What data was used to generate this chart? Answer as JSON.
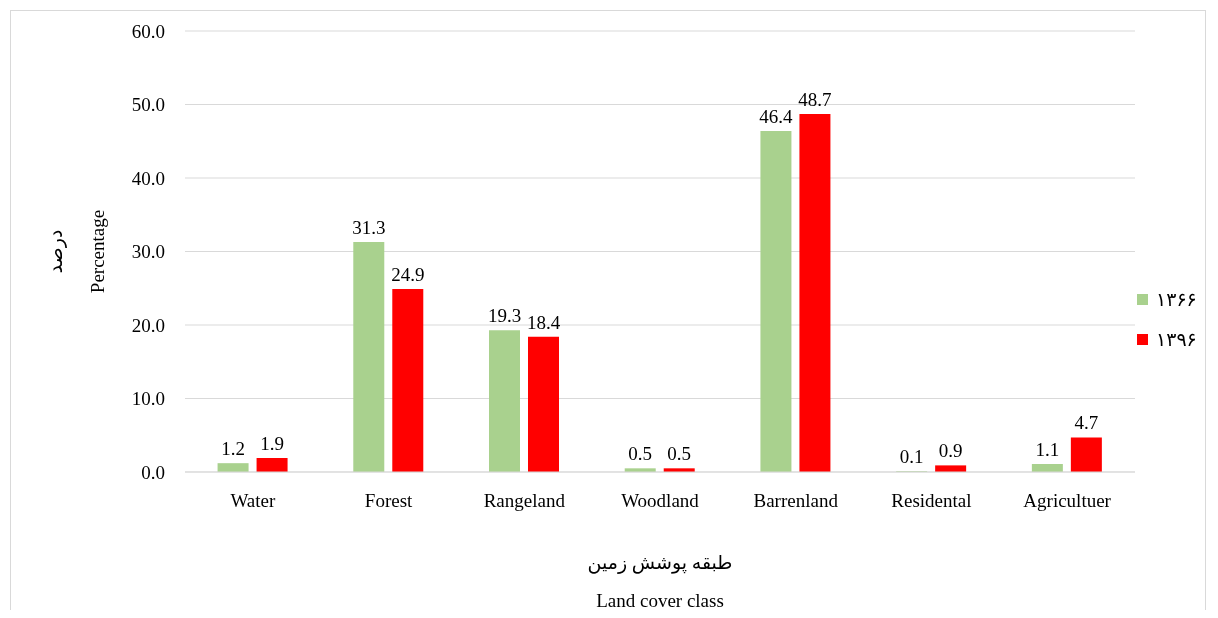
{
  "chart_data": {
    "type": "bar",
    "xlabel": "طبقه پوشش زمین\nLand cover class",
    "ylabel": "درصد\nPercentage",
    "categories": [
      "Water",
      "Forest",
      "Rangeland",
      "Woodland",
      "Barrenland",
      "Residental",
      "Agricultuer"
    ],
    "series": [
      {
        "name": "۱۳۶۶",
        "color": "#a9d18e",
        "values": [
          1.2,
          31.3,
          19.3,
          0.5,
          46.4,
          0.1,
          1.1
        ]
      },
      {
        "name": "۱۳۹۶",
        "color": "#ff0000",
        "values": [
          1.9,
          24.9,
          18.4,
          0.5,
          48.7,
          0.9,
          4.7
        ]
      }
    ],
    "ylim": [
      0,
      60
    ],
    "yticks": [
      {
        "value": 0,
        "label": "0.0"
      },
      {
        "value": 10,
        "label": "10.0"
      },
      {
        "value": 20,
        "label": "20.0"
      },
      {
        "value": 30,
        "label": "30.0"
      },
      {
        "value": 40,
        "label": "40.0"
      },
      {
        "value": 50,
        "label": "50.0"
      },
      {
        "value": 60,
        "label": "60.0"
      }
    ],
    "grid": "y",
    "legend": "right",
    "data_labels": true
  }
}
